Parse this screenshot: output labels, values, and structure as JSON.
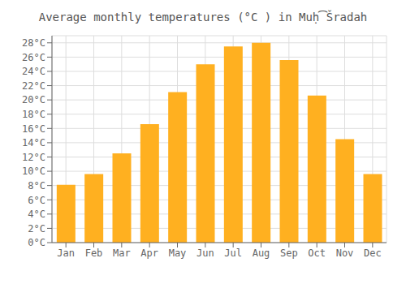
{
  "chart_data": {
    "type": "bar",
    "title": "Average monthly temperatures (°C ) in Muḥ͡Šradah",
    "categories": [
      "Jan",
      "Feb",
      "Mar",
      "Apr",
      "May",
      "Jun",
      "Jul",
      "Aug",
      "Sep",
      "Oct",
      "Nov",
      "Dec"
    ],
    "values": [
      8.1,
      9.6,
      12.5,
      16.6,
      21.1,
      25.0,
      27.5,
      28.0,
      25.6,
      20.6,
      14.5,
      9.6
    ],
    "color": "#FFB020",
    "ylim": [
      0,
      29
    ],
    "yticks": [
      {
        "value": 0,
        "label": "0°C"
      },
      {
        "value": 2,
        "label": "2°C"
      },
      {
        "value": 4,
        "label": "4°C"
      },
      {
        "value": 6,
        "label": "6°C"
      },
      {
        "value": 8,
        "label": "8°C"
      },
      {
        "value": 10,
        "label": "10°C"
      },
      {
        "value": 12,
        "label": "12°C"
      },
      {
        "value": 14,
        "label": "14°C"
      },
      {
        "value": 16,
        "label": "16°C"
      },
      {
        "value": 18,
        "label": "18°C"
      },
      {
        "value": 20,
        "label": "20°C"
      },
      {
        "value": 22,
        "label": "22°C"
      },
      {
        "value": 24,
        "label": "24°C"
      },
      {
        "value": 26,
        "label": "26°C"
      },
      {
        "value": 28,
        "label": "28°C"
      }
    ],
    "grid": true
  }
}
